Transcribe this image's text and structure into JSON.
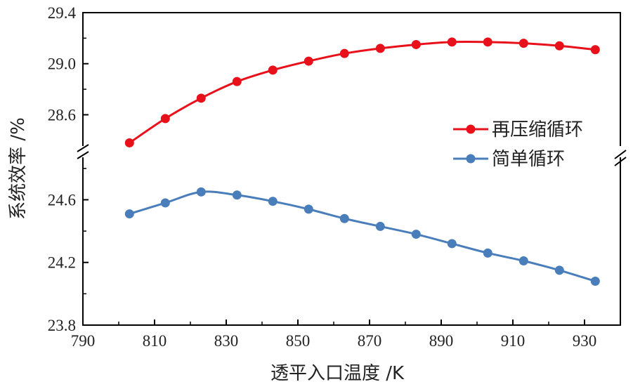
{
  "chart_data": {
    "type": "line",
    "title": "",
    "xlabel": "透平入口温度 /K",
    "ylabel": "系统效率 /%",
    "xlim": [
      790,
      940
    ],
    "xticks": [
      790,
      810,
      830,
      850,
      870,
      890,
      910,
      930
    ],
    "upper_ylim": [
      28.3,
      29.4
    ],
    "upper_yticks": [
      28.6,
      29.0,
      29.4
    ],
    "lower_ylim": [
      23.8,
      24.88
    ],
    "lower_yticks": [
      23.8,
      24.2,
      24.6
    ],
    "axis_break": true,
    "grid": false,
    "legend_position": "right",
    "x": [
      803,
      813,
      823,
      833,
      843,
      853,
      863,
      873,
      883,
      893,
      903,
      913,
      923,
      933
    ],
    "series": [
      {
        "name": "再压缩循环",
        "color": "#e8101a",
        "axis": "upper",
        "values": [
          28.38,
          28.57,
          28.73,
          28.86,
          28.95,
          29.02,
          29.08,
          29.12,
          29.15,
          29.17,
          29.17,
          29.16,
          29.14,
          29.11
        ]
      },
      {
        "name": "简单循环",
        "color": "#4a7ebb",
        "axis": "lower",
        "values": [
          24.51,
          24.58,
          24.65,
          24.63,
          24.59,
          24.54,
          24.48,
          24.43,
          24.38,
          24.32,
          24.26,
          24.21,
          24.15,
          24.08
        ]
      }
    ]
  }
}
